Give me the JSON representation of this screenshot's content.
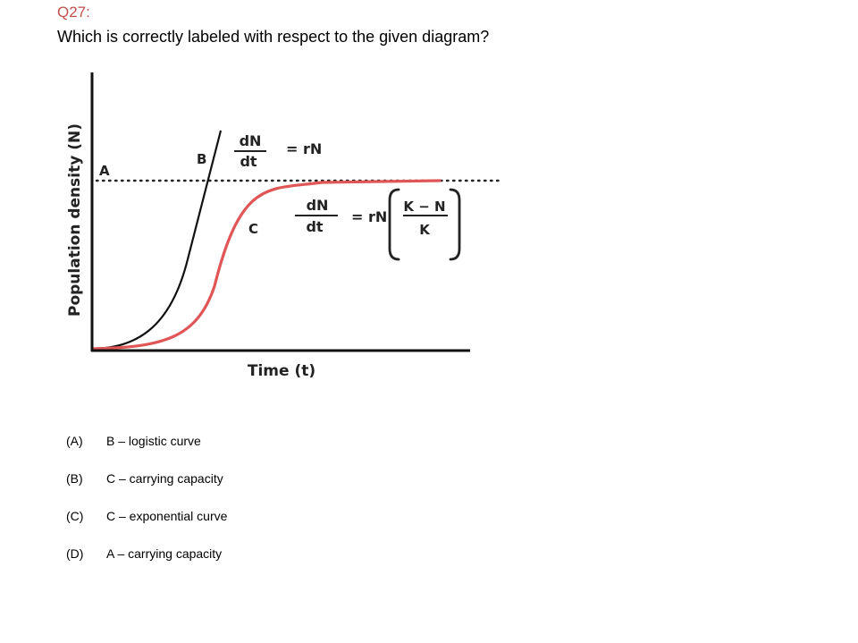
{
  "question": {
    "number": "Q27:",
    "text": "Which is correctly labeled with respect to the given diagram?"
  },
  "diagram": {
    "y_axis_label": "Population density (N)",
    "x_axis_label": "Time (t)",
    "label_a": "A",
    "label_b": "B",
    "label_c": "C",
    "eq_b": {
      "numerator": "dN",
      "denominator": "dt",
      "rhs": "= rN"
    },
    "eq_c": {
      "numerator": "dN",
      "denominator": "dt",
      "rhs": "= rN",
      "inner_numerator": "K − N",
      "inner_denominator": "K"
    },
    "colors": {
      "logistic_curve": "#e05555",
      "exponential_curve": "#111111",
      "axes": "#111111",
      "question_number": "#c0504d"
    }
  },
  "options": [
    {
      "letter": "(A)",
      "text": "B – logistic curve"
    },
    {
      "letter": "(B)",
      "text": "C – carrying capacity"
    },
    {
      "letter": "(C)",
      "text": "C – exponential curve"
    },
    {
      "letter": "(D)",
      "text": "A – carrying capacity"
    }
  ]
}
